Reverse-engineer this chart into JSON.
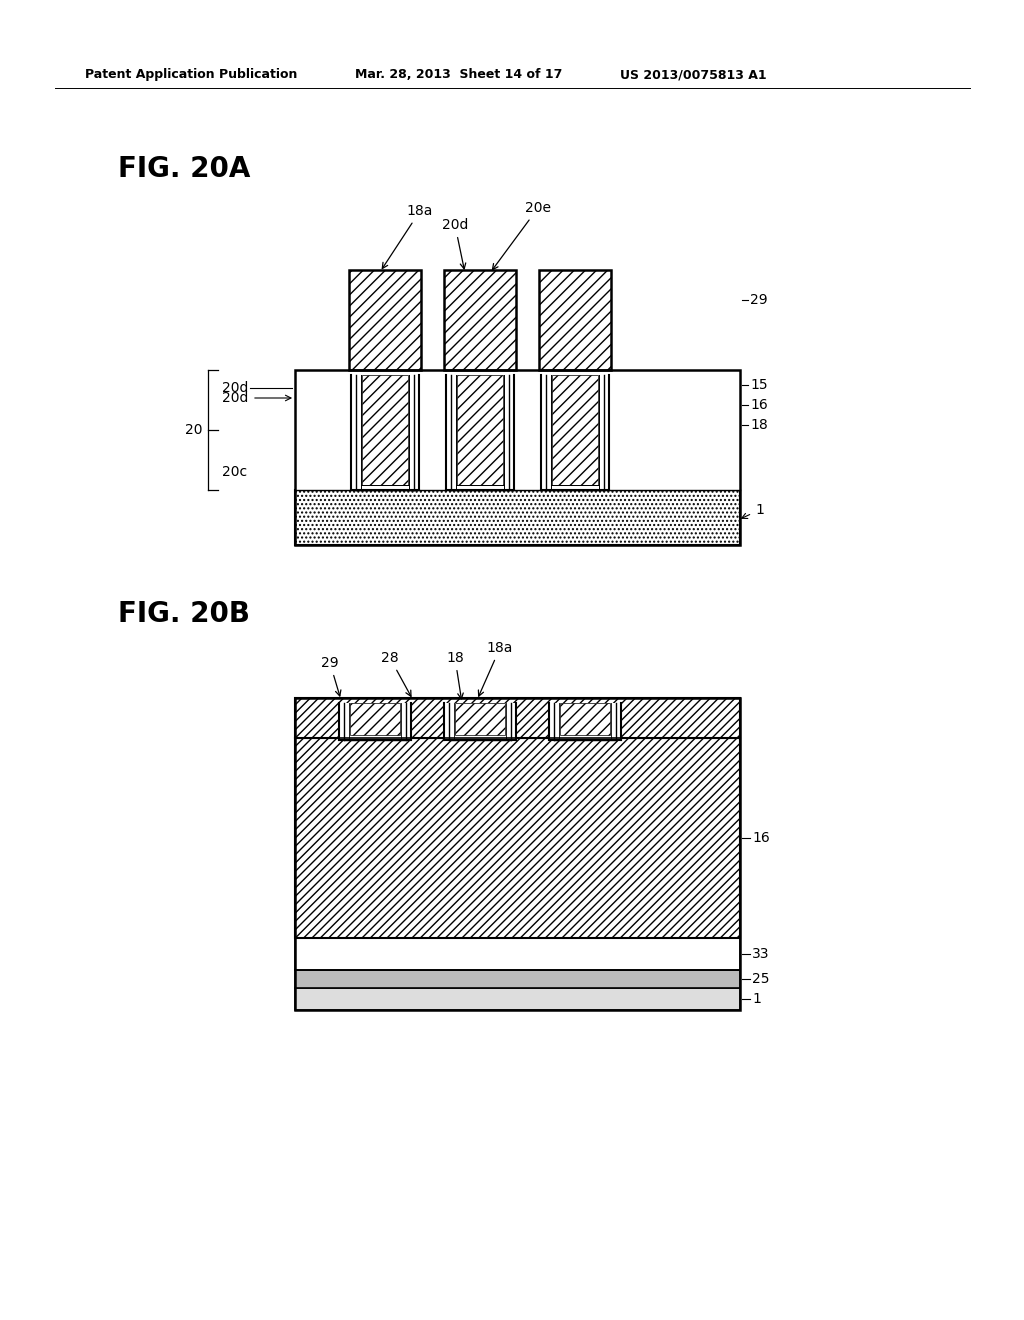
{
  "header_left": "Patent Application Publication",
  "header_mid": "Mar. 28, 2013  Sheet 14 of 17",
  "header_right": "US 2013/0075813 A1",
  "fig_a_label": "FIG. 20A",
  "fig_b_label": "FIG. 20B",
  "bg_color": "#ffffff"
}
